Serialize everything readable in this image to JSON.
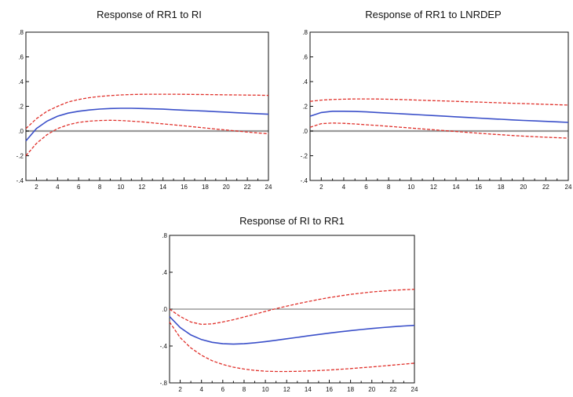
{
  "chart_data": [
    {
      "type": "line",
      "title": "Response of RR1 to RI",
      "x": [
        1,
        2,
        3,
        4,
        5,
        6,
        7,
        8,
        9,
        10,
        11,
        12,
        13,
        14,
        15,
        16,
        17,
        18,
        19,
        20,
        21,
        22,
        23,
        24
      ],
      "xticks": [
        "2",
        "4",
        "6",
        "8",
        "10",
        "12",
        "14",
        "16",
        "18",
        "20",
        "22",
        "24"
      ],
      "yticks": [
        ".8",
        ".6",
        ".4",
        ".2",
        ".0",
        "-.2",
        "-.4"
      ],
      "ylim": [
        -0.4,
        0.8
      ],
      "zero_style": "gray",
      "colors": {
        "estimate": "#3a4fc9",
        "bands": "#e0302a"
      },
      "series": [
        {
          "role": "estimate",
          "values": [
            -0.08,
            0.02,
            0.08,
            0.12,
            0.145,
            0.16,
            0.17,
            0.178,
            0.182,
            0.184,
            0.184,
            0.182,
            0.18,
            0.177,
            0.173,
            0.169,
            0.165,
            0.161,
            0.157,
            0.153,
            0.148,
            0.144,
            0.14,
            0.136
          ]
        },
        {
          "role": "upper",
          "values": [
            0.02,
            0.1,
            0.16,
            0.2,
            0.235,
            0.255,
            0.27,
            0.28,
            0.287,
            0.292,
            0.295,
            0.297,
            0.298,
            0.298,
            0.298,
            0.297,
            0.296,
            0.295,
            0.294,
            0.293,
            0.292,
            0.291,
            0.29,
            0.288
          ]
        },
        {
          "role": "lower",
          "values": [
            -0.2,
            -0.1,
            -0.03,
            0.02,
            0.05,
            0.07,
            0.08,
            0.085,
            0.087,
            0.085,
            0.08,
            0.074,
            0.066,
            0.058,
            0.05,
            0.042,
            0.033,
            0.025,
            0.016,
            0.008,
            0.0,
            -0.008,
            -0.016,
            -0.022
          ]
        }
      ]
    },
    {
      "type": "line",
      "title": "Response of RR1 to LNRDEP",
      "x": [
        1,
        2,
        3,
        4,
        5,
        6,
        7,
        8,
        9,
        10,
        11,
        12,
        13,
        14,
        15,
        16,
        17,
        18,
        19,
        20,
        21,
        22,
        23,
        24
      ],
      "xticks": [
        "2",
        "4",
        "6",
        "8",
        "10",
        "12",
        "14",
        "16",
        "18",
        "20",
        "22",
        "24"
      ],
      "yticks": [
        ".8",
        ".6",
        ".4",
        ".2",
        ".0",
        "-.2",
        "-.4"
      ],
      "ylim": [
        -0.4,
        0.8
      ],
      "zero_style": "gray",
      "colors": {
        "estimate": "#3a4fc9",
        "bands": "#e0302a"
      },
      "series": [
        {
          "role": "estimate",
          "values": [
            0.12,
            0.15,
            0.16,
            0.16,
            0.158,
            0.155,
            0.15,
            0.145,
            0.14,
            0.135,
            0.13,
            0.125,
            0.12,
            0.115,
            0.11,
            0.105,
            0.1,
            0.095,
            0.09,
            0.086,
            0.082,
            0.078,
            0.074,
            0.07
          ]
        },
        {
          "role": "upper",
          "values": [
            0.24,
            0.25,
            0.255,
            0.258,
            0.26,
            0.26,
            0.259,
            0.257,
            0.255,
            0.252,
            0.249,
            0.246,
            0.243,
            0.24,
            0.237,
            0.234,
            0.231,
            0.228,
            0.225,
            0.222,
            0.219,
            0.216,
            0.213,
            0.21
          ]
        },
        {
          "role": "lower",
          "values": [
            0.03,
            0.06,
            0.065,
            0.062,
            0.057,
            0.051,
            0.045,
            0.038,
            0.031,
            0.024,
            0.017,
            0.01,
            0.003,
            -0.004,
            -0.011,
            -0.018,
            -0.024,
            -0.03,
            -0.036,
            -0.041,
            -0.046,
            -0.05,
            -0.054,
            -0.058
          ]
        }
      ]
    },
    {
      "type": "line",
      "title": "Response of RI to RR1",
      "x": [
        1,
        2,
        3,
        4,
        5,
        6,
        7,
        8,
        9,
        10,
        11,
        12,
        13,
        14,
        15,
        16,
        17,
        18,
        19,
        20,
        21,
        22,
        23,
        24
      ],
      "xticks": [
        "2",
        "4",
        "6",
        "8",
        "10",
        "12",
        "14",
        "16",
        "18",
        "20",
        "22",
        "24"
      ],
      "yticks": [
        ".8",
        ".4",
        ".0",
        "-.4",
        "-.8"
      ],
      "ylim": [
        -0.8,
        0.8
      ],
      "zero_style": "dark",
      "colors": {
        "estimate": "#3a4fc9",
        "bands": "#e0302a"
      },
      "series": [
        {
          "role": "estimate",
          "values": [
            -0.08,
            -0.2,
            -0.28,
            -0.33,
            -0.36,
            -0.375,
            -0.38,
            -0.375,
            -0.365,
            -0.352,
            -0.338,
            -0.322,
            -0.306,
            -0.29,
            -0.275,
            -0.26,
            -0.246,
            -0.233,
            -0.221,
            -0.21,
            -0.2,
            -0.191,
            -0.183,
            -0.176
          ]
        },
        {
          "role": "upper",
          "values": [
            0.0,
            -0.08,
            -0.14,
            -0.165,
            -0.16,
            -0.14,
            -0.115,
            -0.085,
            -0.055,
            -0.025,
            0.005,
            0.032,
            0.058,
            0.082,
            0.105,
            0.125,
            0.143,
            0.16,
            0.174,
            0.186,
            0.196,
            0.204,
            0.21,
            0.215
          ]
        },
        {
          "role": "lower",
          "values": [
            -0.14,
            -0.31,
            -0.42,
            -0.5,
            -0.56,
            -0.6,
            -0.63,
            -0.65,
            -0.665,
            -0.673,
            -0.677,
            -0.677,
            -0.675,
            -0.671,
            -0.666,
            -0.66,
            -0.653,
            -0.645,
            -0.636,
            -0.627,
            -0.617,
            -0.607,
            -0.597,
            -0.586
          ]
        }
      ]
    }
  ]
}
